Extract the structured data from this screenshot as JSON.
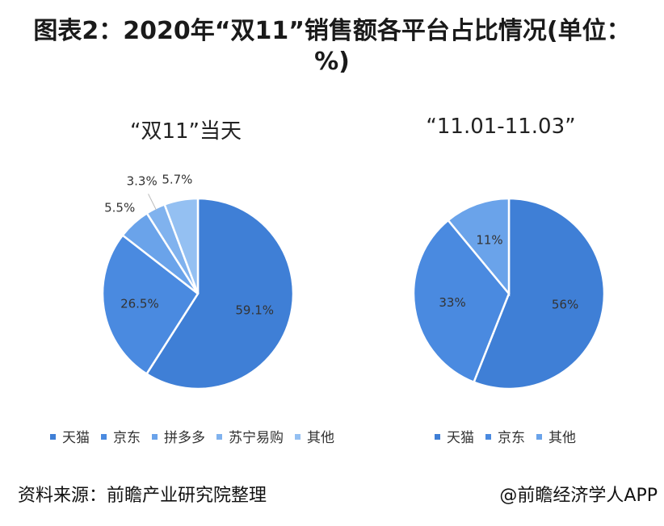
{
  "title": "图表2：2020年“双11”销售额各平台占比情况(单位：%)",
  "footer": {
    "source": "资料来源：前瞻产业研究院整理",
    "credit": "@前瞻经济学人APP"
  },
  "colors": {
    "primary": "#3f7fd6",
    "mid": "#4a8ae0",
    "light": "#6aa3ea",
    "lighter": "#80b2ee",
    "lightest": "#94c0f2"
  },
  "chart_data": [
    {
      "type": "pie",
      "subtitle": "“双11”当天",
      "categories": [
        "天猫",
        "京东",
        "拼多多",
        "苏宁易购",
        "其他"
      ],
      "values": [
        59.1,
        26.5,
        5.5,
        3.3,
        5.7
      ],
      "labels": [
        "59.1%",
        "26.5%",
        "5.5%",
        "3.3%",
        "5.7%"
      ],
      "colors": [
        "#3f7fd6",
        "#4a8ae0",
        "#6aa3ea",
        "#80b2ee",
        "#94c0f2"
      ],
      "legend": "bottom"
    },
    {
      "type": "pie",
      "subtitle": "“11.01-11.03”",
      "categories": [
        "天猫",
        "京东",
        "其他"
      ],
      "values": [
        56,
        33,
        11
      ],
      "labels": [
        "56%",
        "33%",
        "11%"
      ],
      "colors": [
        "#3f7fd6",
        "#4a8ae0",
        "#6aa3ea"
      ],
      "legend": "bottom"
    }
  ]
}
